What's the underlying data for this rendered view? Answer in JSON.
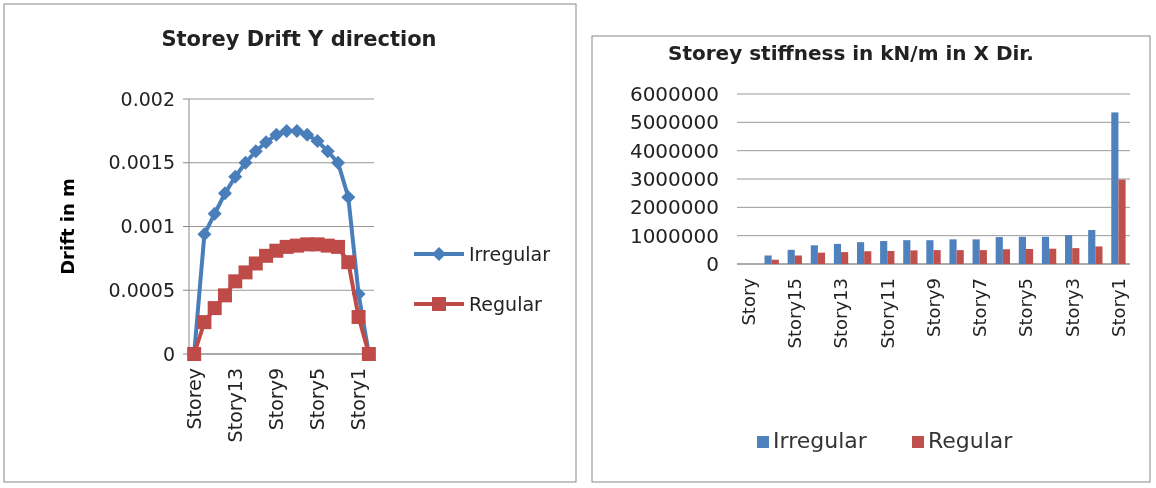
{
  "chart_data": [
    {
      "type": "line",
      "title": "Storey Drift Y direction",
      "ylabel": "Drift in m",
      "categories": [
        "Storey",
        null,
        null,
        null,
        "Story13",
        null,
        null,
        null,
        "Story9",
        null,
        null,
        null,
        "Story5",
        null,
        null,
        null,
        "Story1",
        null
      ],
      "series": [
        {
          "name": "Irregular",
          "color": "#4a7ebb",
          "values": [
            0,
            0.00094,
            0.0011,
            0.00126,
            0.00139,
            0.0015,
            0.00159,
            0.00166,
            0.00172,
            0.00175,
            0.00175,
            0.00172,
            0.00167,
            0.00159,
            0.0015,
            0.00123,
            0.00047,
            0
          ],
          "marker": "diamond"
        },
        {
          "name": "Regular",
          "color": "#be4b48",
          "values": [
            0,
            0.00025,
            0.00036,
            0.00046,
            0.00057,
            0.00064,
            0.00071,
            0.00077,
            0.00081,
            0.00084,
            0.00085,
            0.00086,
            0.00086,
            0.00085,
            0.00084,
            0.00072,
            0.00029,
            0
          ],
          "marker": "square"
        }
      ],
      "ylim": [
        0,
        0.002
      ],
      "yticks": [
        0,
        0.0005,
        0.001,
        0.0015,
        0.002
      ],
      "grid": "y",
      "legend": "right"
    },
    {
      "type": "bar",
      "title": "Storey stiffness in kN/m in X Dir.",
      "categories": [
        "Story",
        null,
        "Story15",
        null,
        "Story13",
        null,
        "Story11",
        null,
        "Story9",
        null,
        "Story7",
        null,
        "Story5",
        null,
        "Story3",
        null,
        "Story1"
      ],
      "series": [
        {
          "name": "Irregular",
          "color": "#4f81bd",
          "values": [
            null,
            300000,
            500000,
            660000,
            710000,
            770000,
            810000,
            840000,
            840000,
            870000,
            870000,
            950000,
            960000,
            960000,
            1020000,
            1200000,
            5350000
          ]
        },
        {
          "name": "Regular",
          "color": "#c0504d",
          "values": [
            null,
            150000,
            300000,
            400000,
            420000,
            450000,
            460000,
            480000,
            490000,
            490000,
            490000,
            520000,
            530000,
            540000,
            560000,
            620000,
            2980000
          ]
        }
      ],
      "ylim": [
        0,
        6000000
      ],
      "yticks": [
        0,
        1000000,
        2000000,
        3000000,
        4000000,
        5000000,
        6000000
      ],
      "grid": "y",
      "legend": "bottom"
    }
  ]
}
